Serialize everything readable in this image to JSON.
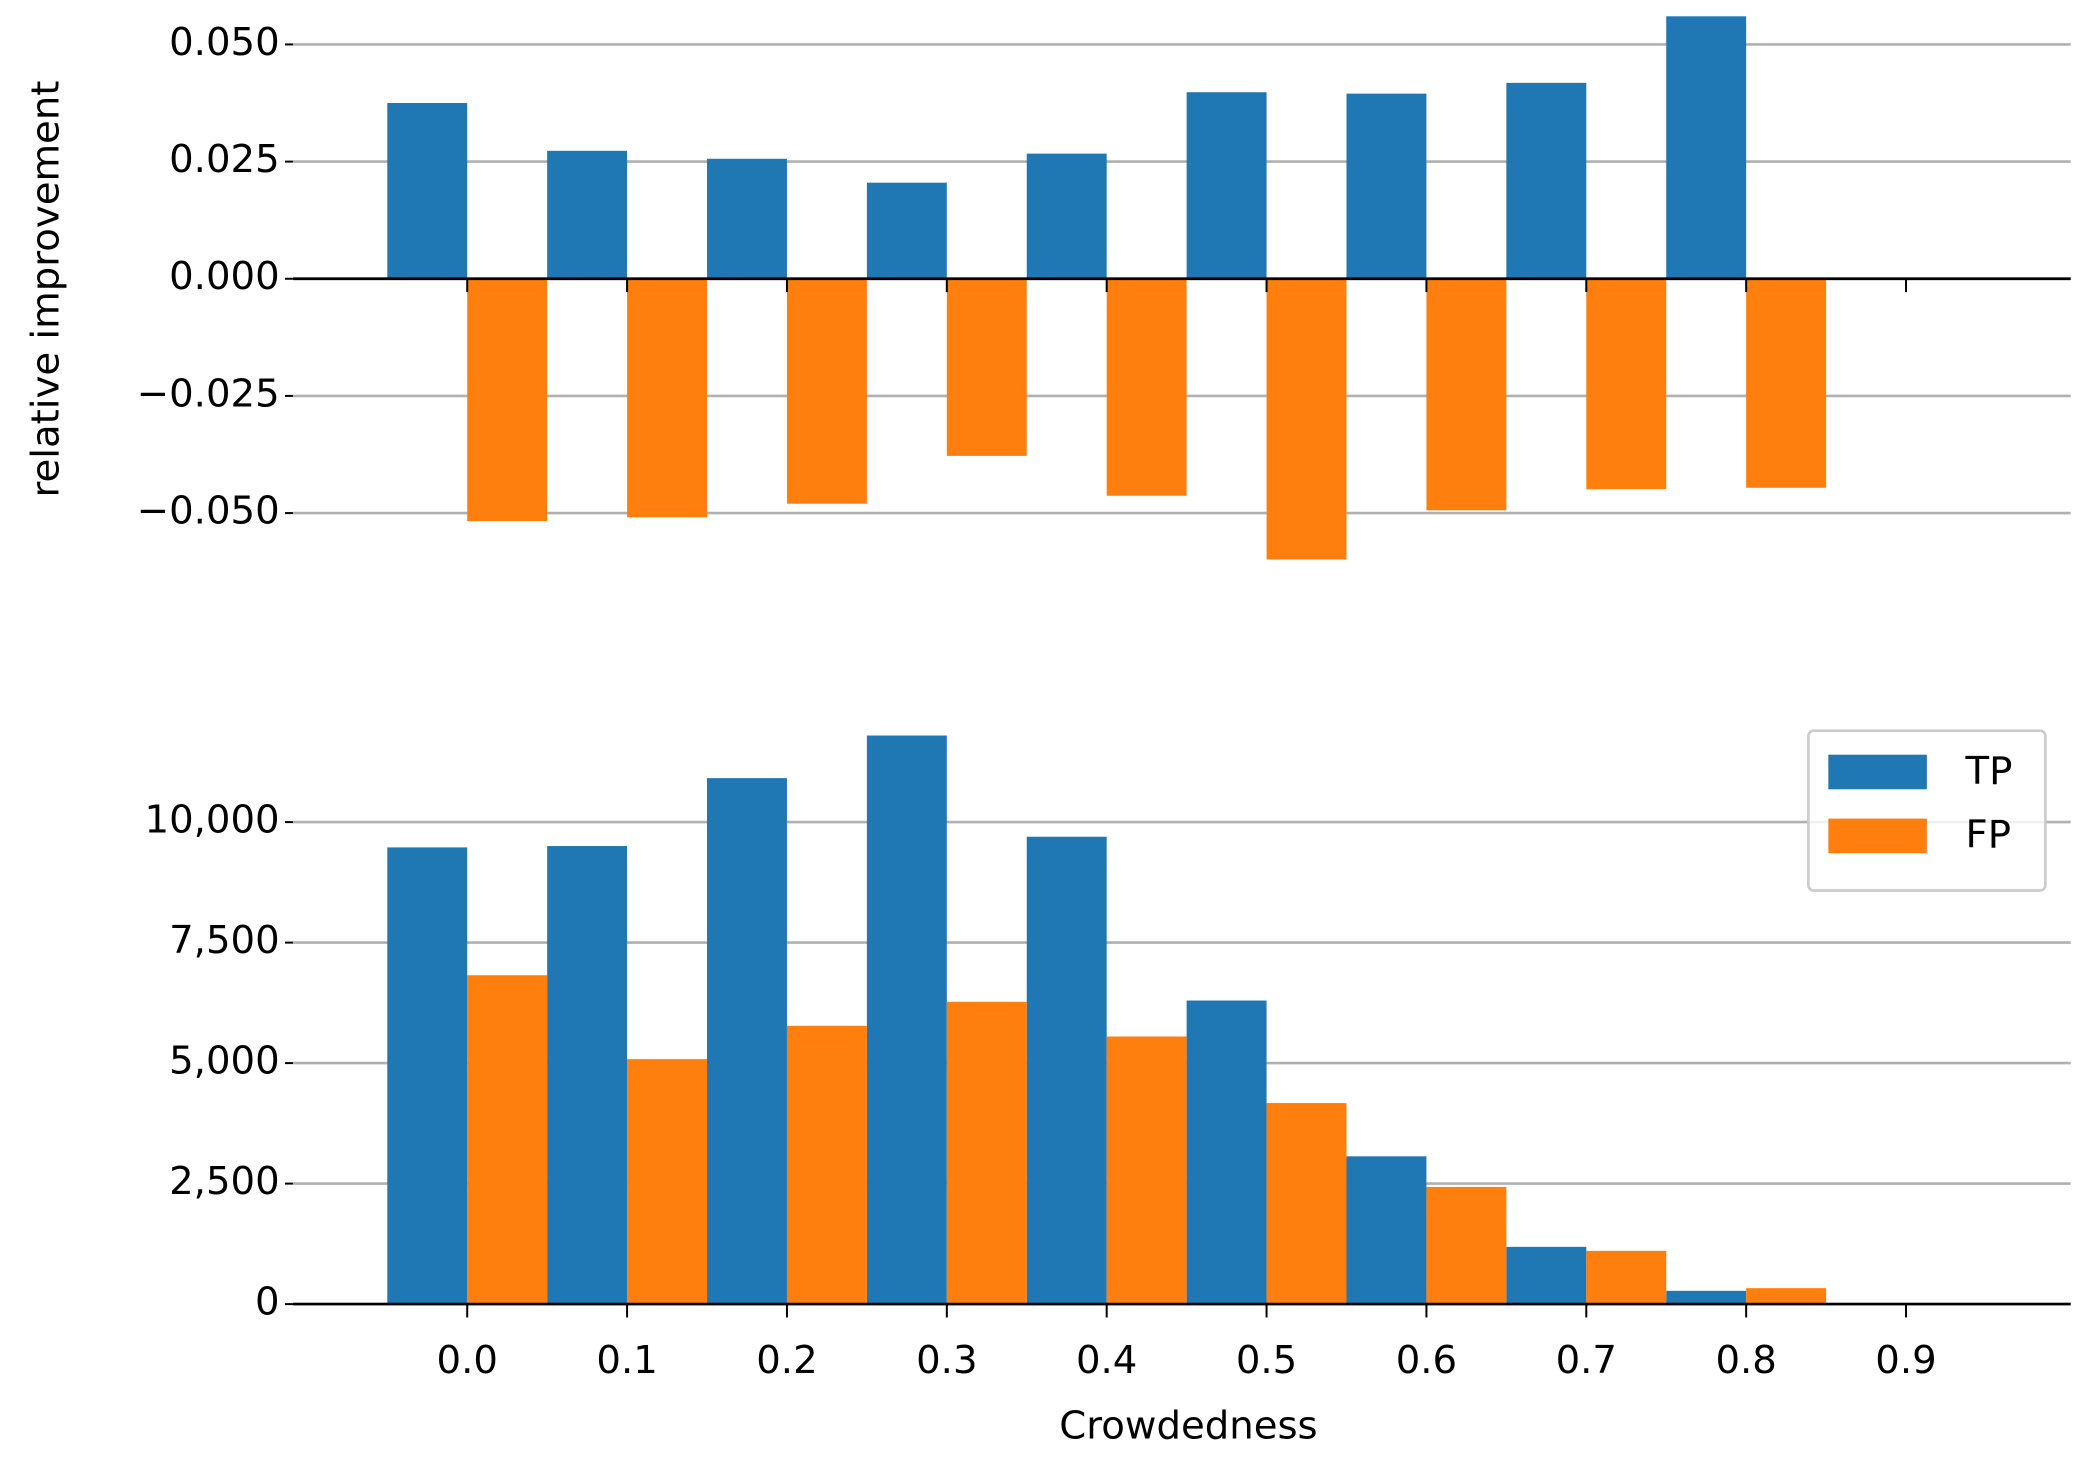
{
  "chart_data": [
    {
      "type": "bar",
      "y_label": "relative improvement",
      "x": [
        0.0,
        0.1,
        0.2,
        0.3,
        0.4,
        0.5,
        0.6,
        0.7,
        0.8
      ],
      "series": [
        {
          "color": "#1f77b4",
          "values": [
            0.0375,
            0.0273,
            0.0256,
            0.0205,
            0.0267,
            0.0398,
            0.0395,
            0.0418,
            0.056
          ]
        },
        {
          "color": "#ff7f0e",
          "values": [
            -0.0517,
            -0.0509,
            -0.048,
            -0.0378,
            -0.0463,
            -0.0599,
            -0.0494,
            -0.0449,
            -0.0446
          ]
        }
      ],
      "xlim": [
        -0.109,
        1.003
      ],
      "xticks": [
        0.0,
        0.1,
        0.2,
        0.3,
        0.4,
        0.5,
        0.6,
        0.7,
        0.8,
        0.9
      ],
      "ylim": [
        -0.0614,
        0.057
      ],
      "yticks": [
        {
          "value": -0.05,
          "label": "−0.050"
        },
        {
          "value": -0.025,
          "label": "−0.025"
        },
        {
          "value": 0,
          "label": "0.000"
        },
        {
          "value": 0.025,
          "label": "0.025"
        },
        {
          "value": 0.05,
          "label": "0.050"
        }
      ],
      "grid": true
    },
    {
      "type": "bar",
      "x_label": "Crowdedness",
      "x": [
        0.0,
        0.1,
        0.2,
        0.3,
        0.4,
        0.5,
        0.6,
        0.7,
        0.8
      ],
      "series": [
        {
          "name": "TP",
          "color": "#1f77b4",
          "values": [
            9475,
            9503,
            10912,
            11796,
            9696,
            6298,
            3066,
            1188,
            276
          ]
        },
        {
          "name": "FP",
          "color": "#ff7f0e",
          "values": [
            6823,
            5083,
            5773,
            6271,
            5552,
            4171,
            2431,
            1105,
            331
          ]
        }
      ],
      "xlim": [
        -0.109,
        1.003
      ],
      "xticks": [
        {
          "value": 0.0,
          "label": "0.0"
        },
        0.1,
        0.2,
        0.3,
        0.4,
        0.5,
        0.6,
        0.7,
        0.8,
        0.9
      ],
      "ylim": [
        0,
        12200
      ],
      "yticks": [
        0,
        {
          "value": 2500,
          "label": "2,500"
        },
        {
          "value": 5000,
          "label": "5,000"
        },
        {
          "value": 7500,
          "label": "7,500"
        },
        {
          "value": 10000,
          "label": "10,000"
        }
      ],
      "grid": true,
      "legend": "upper right"
    }
  ]
}
